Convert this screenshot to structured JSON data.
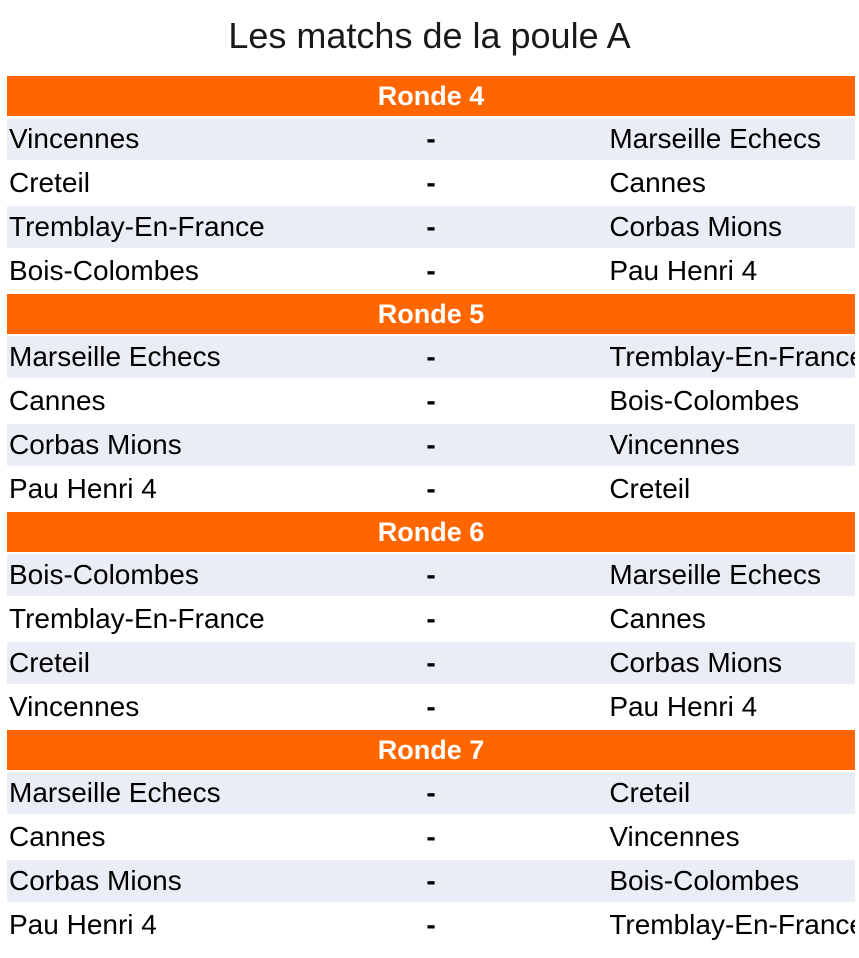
{
  "title": "Les matchs de la poule A",
  "separator": "-",
  "colors": {
    "accent_orange": "#ff6600",
    "row_alt": "#eaedf5",
    "row_default": "#ffffff",
    "header_text": "#ffffff",
    "match_text": "#000000",
    "title_text": "#1a1a1a"
  },
  "rounds": [
    {
      "label": "Ronde 4",
      "matches": [
        {
          "home": "Vincennes",
          "away": "Marseille Echecs"
        },
        {
          "home": "Creteil",
          "away": "Cannes"
        },
        {
          "home": "Tremblay-En-France",
          "away": "Corbas Mions"
        },
        {
          "home": "Bois-Colombes",
          "away": "Pau Henri 4"
        }
      ]
    },
    {
      "label": "Ronde 5",
      "matches": [
        {
          "home": "Marseille Echecs",
          "away": "Tremblay-En-France"
        },
        {
          "home": "Cannes",
          "away": "Bois-Colombes"
        },
        {
          "home": "Corbas Mions",
          "away": "Vincennes"
        },
        {
          "home": "Pau Henri 4",
          "away": "Creteil"
        }
      ]
    },
    {
      "label": "Ronde 6",
      "matches": [
        {
          "home": "Bois-Colombes",
          "away": "Marseille Echecs"
        },
        {
          "home": "Tremblay-En-France",
          "away": "Cannes"
        },
        {
          "home": "Creteil",
          "away": "Corbas Mions"
        },
        {
          "home": "Vincennes",
          "away": "Pau Henri 4"
        }
      ]
    },
    {
      "label": "Ronde 7",
      "matches": [
        {
          "home": "Marseille Echecs",
          "away": "Creteil"
        },
        {
          "home": "Cannes",
          "away": "Vincennes"
        },
        {
          "home": "Corbas Mions",
          "away": "Bois-Colombes"
        },
        {
          "home": "Pau Henri 4",
          "away": "Tremblay-En-France"
        }
      ]
    }
  ]
}
